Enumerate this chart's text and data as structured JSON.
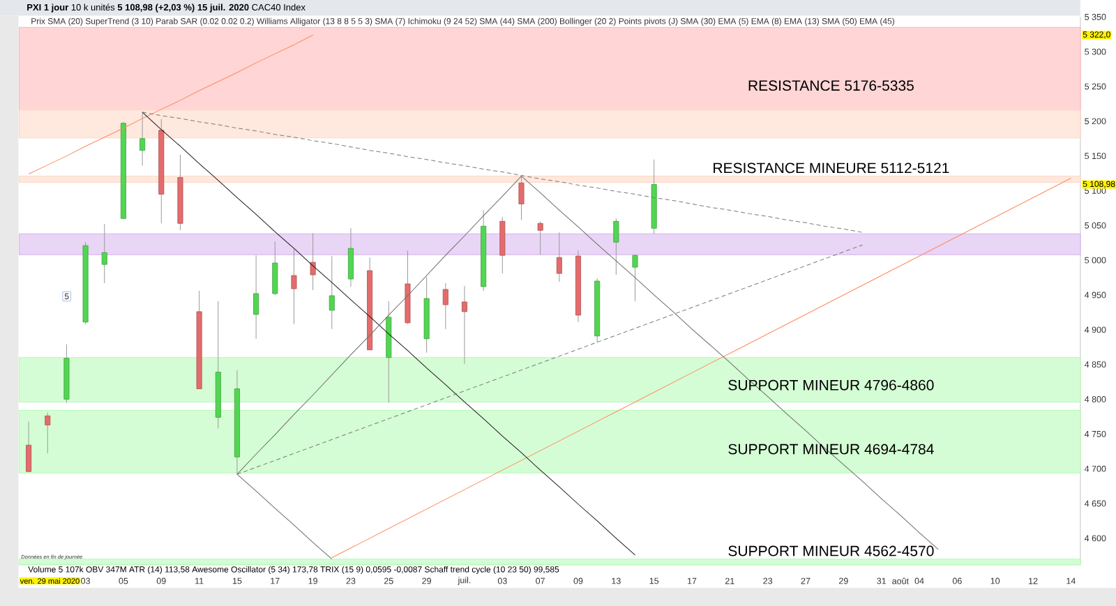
{
  "chart_data": {
    "type": "candlestick",
    "title": "**PXI 1 jour** 10 k unités **5 108,98 (+2,03 %) 15 juil. 2020** CAC40 Index",
    "categories": [
      null,
      null,
      null,
      "03",
      null,
      "05",
      null,
      "09",
      null,
      "11",
      null,
      "15",
      null,
      "17",
      null,
      "19",
      null,
      "23",
      null,
      "25",
      null,
      "29",
      null,
      "juil.",
      null,
      "03",
      null,
      "07",
      null,
      "09",
      null,
      "13",
      null,
      "15",
      null,
      "17",
      null,
      "21",
      null,
      "23",
      null,
      "27",
      null,
      "29",
      null,
      "31",
      "août",
      "04",
      null,
      "06",
      null,
      "10",
      null,
      "12",
      null,
      "14"
    ],
    "ohlc": [
      [
        4734,
        4768,
        4695,
        4696
      ],
      [
        4776,
        4781,
        4722,
        4763
      ],
      [
        4800,
        4879,
        4795,
        4859
      ],
      [
        4911,
        5026,
        4908,
        5021
      ],
      [
        4994,
        5052,
        4967,
        5011
      ],
      [
        5060,
        5199,
        5060,
        5197
      ],
      [
        5158,
        5213,
        5136,
        5175
      ],
      [
        5187,
        5203,
        5053,
        5095
      ],
      [
        5119,
        5152,
        5043,
        5053
      ],
      [
        4926,
        4956,
        4815,
        4815
      ],
      [
        4774,
        4941,
        4758,
        4839
      ],
      [
        4717,
        4842,
        4692,
        4815
      ],
      [
        4922,
        5007,
        4887,
        4952
      ],
      [
        4952,
        5027,
        4950,
        4996
      ],
      [
        4978,
        5016,
        4908,
        4959
      ],
      [
        4997,
        5039,
        4957,
        4979
      ],
      [
        4928,
        5006,
        4901,
        4949
      ],
      [
        4973,
        5046,
        4962,
        5017
      ],
      [
        4985,
        5004,
        4871,
        4871
      ],
      [
        4860,
        4941,
        4795,
        4918
      ],
      [
        4966,
        5014,
        4908,
        4910
      ],
      [
        4887,
        4976,
        4867,
        4945
      ],
      [
        4958,
        4967,
        4901,
        4936
      ],
      [
        4940,
        4963,
        4851,
        4926
      ],
      [
        4962,
        5072,
        4956,
        5049
      ],
      [
        5056,
        5062,
        4981,
        5007
      ],
      [
        5111,
        5121,
        5058,
        5081
      ],
      [
        5053,
        5056,
        5008,
        5043
      ],
      [
        5004,
        5040,
        4969,
        4981
      ],
      [
        5006,
        5014,
        4911,
        4921
      ],
      [
        4891,
        4974,
        4882,
        4970
      ],
      [
        5026,
        5060,
        4979,
        5056
      ],
      [
        4990,
        5008,
        4941,
        5007
      ],
      [
        5046,
        5145,
        5038,
        5109
      ],
      null,
      null,
      null,
      null,
      null,
      null,
      null,
      null,
      null,
      null,
      null,
      null,
      null,
      null,
      null,
      null,
      null,
      null,
      null,
      null,
      null,
      null
    ],
    "colors": [
      "#e46c6c",
      "#e46c6c",
      "#52d652",
      "#52d652",
      "#52d652",
      "#52d652",
      "#52d652",
      "#e46c6c",
      "#e46c6c",
      "#e46c6c",
      "#52d652",
      "#52d652",
      "#52d652",
      "#52d652",
      "#e46c6c",
      "#e46c6c",
      "#52d652",
      "#52d652",
      "#e46c6c",
      "#52d652",
      "#e46c6c",
      "#52d652",
      "#e46c6c",
      "#e46c6c",
      "#52d652",
      "#e46c6c",
      "#e46c6c",
      "#e46c6c",
      "#e46c6c",
      "#e46c6c",
      "#52d652",
      "#52d652",
      "#52d652",
      "#52d652",
      null,
      null,
      null,
      null,
      null,
      null,
      null,
      null,
      null,
      null,
      null,
      null,
      null,
      null,
      null,
      null,
      null,
      null,
      null,
      null,
      null,
      null
    ],
    "series": [
      {
        "type": "line",
        "color": "#ff8a5e",
        "values": [
          5124,
          5137,
          5150,
          5164,
          5177,
          5190,
          5204,
          5217,
          5230,
          5244,
          5257,
          5270,
          5284,
          5297,
          5310,
          5324,
          null,
          null,
          null,
          null,
          null,
          null,
          null,
          null,
          null,
          null,
          null,
          null,
          null,
          null,
          null,
          null,
          null,
          null,
          null,
          null,
          null,
          null,
          null,
          null,
          null,
          null,
          null,
          null,
          null,
          null,
          null,
          null,
          null,
          null,
          null,
          null,
          null,
          null,
          null,
          null
        ]
      },
      {
        "type": "line",
        "color": "#ff8a5e",
        "values": [
          null,
          null,
          null,
          null,
          null,
          null,
          null,
          null,
          null,
          null,
          null,
          null,
          null,
          null,
          null,
          null,
          4572,
          4586,
          4600,
          4614,
          4628,
          4642,
          4656,
          4670,
          4684,
          4698,
          4712,
          4726,
          4740,
          4754,
          4768,
          4782,
          4796,
          4810,
          4824,
          4838,
          4852,
          4866,
          4880,
          4894,
          4908,
          4922,
          4936,
          4950,
          4964,
          4978,
          4992,
          5006,
          5020,
          5034,
          5048,
          5062,
          5076,
          5090,
          5104,
          5118
        ]
      },
      {
        "type": "line",
        "color": "#1e1e1e",
        "values": [
          null,
          null,
          null,
          null,
          null,
          null,
          5213,
          5188,
          5164,
          5139,
          5115,
          5090,
          5066,
          5041,
          5017,
          4992,
          4968,
          4943,
          4919,
          4894,
          4870,
          4845,
          4821,
          4796,
          4772,
          4747,
          4723,
          4698,
          4674,
          4649,
          4625,
          4600,
          4576,
          null,
          null,
          null,
          null,
          null,
          null,
          null,
          null,
          null,
          null,
          null,
          null,
          null,
          null,
          null,
          null,
          null,
          null,
          null,
          null,
          null,
          null,
          null
        ]
      },
      {
        "type": "line",
        "color": "#6e6e6e",
        "values": [
          null,
          null,
          null,
          null,
          null,
          null,
          null,
          null,
          null,
          null,
          null,
          4692,
          4721,
          4749,
          4778,
          4806,
          4835,
          4864,
          4892,
          4921,
          4949,
          4978,
          5007,
          5035,
          5064,
          5092,
          5121,
          null,
          null,
          null,
          null,
          null,
          null,
          null,
          null,
          null,
          null,
          null,
          null,
          null,
          null,
          null,
          null,
          null,
          null,
          null,
          null,
          null,
          null,
          null,
          null,
          null,
          null,
          null,
          null,
          null
        ]
      },
      {
        "type": "line",
        "color": "#6e6e6e",
        "values": [
          null,
          null,
          null,
          null,
          null,
          null,
          null,
          null,
          null,
          null,
          null,
          null,
          null,
          null,
          null,
          null,
          null,
          null,
          null,
          null,
          null,
          null,
          null,
          null,
          null,
          null,
          5121,
          5097,
          5072,
          5048,
          5023,
          4999,
          4975,
          4950,
          4926,
          4901,
          4877,
          4853,
          4828,
          4804,
          4779,
          4755,
          4730,
          4706,
          4682,
          4657,
          4633,
          4608,
          4584,
          null,
          null,
          null,
          null,
          null,
          null,
          null
        ]
      },
      {
        "type": "line",
        "color": "#6e6e6e",
        "values": [
          null,
          null,
          null,
          null,
          null,
          null,
          null,
          null,
          null,
          null,
          null,
          4692,
          4668,
          4643,
          4619,
          4594,
          4570,
          null,
          null,
          null,
          null,
          null,
          null,
          null,
          null,
          null,
          null,
          null,
          null,
          null,
          null,
          null,
          null,
          null,
          null,
          null,
          null,
          null,
          null,
          null,
          null,
          null,
          null,
          null,
          null,
          null,
          null,
          null,
          null,
          null,
          null,
          null,
          null,
          null,
          null,
          null
        ]
      },
      {
        "type": "line",
        "color": "#7a7a7a",
        "line_style": "dashed",
        "values": [
          null,
          null,
          null,
          null,
          null,
          null,
          5213,
          5208,
          5204,
          5199,
          5195,
          5190,
          5186,
          5181,
          5177,
          5172,
          5168,
          5163,
          5158,
          5154,
          5149,
          5145,
          5140,
          5136,
          5131,
          5127,
          5122,
          5117,
          5113,
          5108,
          5104,
          5099,
          5095,
          5090,
          5086,
          5081,
          5076,
          5072,
          5067,
          5063,
          5058,
          5054,
          5049,
          5045,
          5040,
          null,
          null,
          null,
          null,
          null,
          null,
          null,
          null,
          null,
          null,
          null
        ]
      },
      {
        "type": "line",
        "color": "#7a7a7a",
        "line_style": "dashed",
        "values": [
          null,
          null,
          null,
          null,
          null,
          null,
          null,
          null,
          null,
          null,
          null,
          4692,
          4702,
          4712,
          4722,
          4732,
          4742,
          4752,
          4762,
          4772,
          4782,
          4792,
          4802,
          4812,
          4822,
          4832,
          4842,
          4852,
          4862,
          4872,
          4882,
          4892,
          4902,
          4912,
          4922,
          4932,
          4942,
          4952,
          4962,
          4972,
          4982,
          4992,
          5002,
          5012,
          5022,
          null,
          null,
          null,
          null,
          null,
          null,
          null,
          null,
          null,
          null,
          null
        ]
      }
    ],
    "ylim": [
      4562,
      5350
    ],
    "yticks": [
      {
        "value": 4600,
        "label": "4 600"
      },
      {
        "value": 4650,
        "label": "4 650"
      },
      {
        "value": 4700,
        "label": "4 700"
      },
      {
        "value": 4750,
        "label": "4 750"
      },
      {
        "value": 4800,
        "label": "4 800"
      },
      {
        "value": 4850,
        "label": "4 850"
      },
      {
        "value": 4900,
        "label": "4 900"
      },
      {
        "value": 4950,
        "label": "4 950"
      },
      {
        "value": 5000,
        "label": "5 000"
      },
      {
        "value": 5050,
        "label": "5 050"
      },
      {
        "value": 5100,
        "label": "5 100"
      },
      {
        "value": 5150,
        "label": "5 150"
      },
      {
        "value": 5200,
        "label": "5 200"
      },
      {
        "value": 5250,
        "label": "5 250"
      },
      {
        "value": 5300,
        "label": "5 300"
      },
      {
        "value": 5350,
        "label": "5 350"
      }
    ],
    "bands": [
      {
        "axis": "y",
        "from": 5200,
        "to": 5335,
        "label": "RESISTANCE 5176-5335",
        "color": "#ffd5d5"
      },
      {
        "axis": "y",
        "from": 5176,
        "to": 5216,
        "color": "#ffe8de"
      },
      {
        "axis": "y",
        "from": 5112,
        "to": 5121,
        "label": "RESISTANCE MINEURE 5112-5121",
        "color": "#ffe8de"
      },
      {
        "axis": "y",
        "from": 5008,
        "to": 5038,
        "color": "#e9d5f5"
      },
      {
        "axis": "y",
        "from": 4796,
        "to": 4860,
        "label": "SUPPORT MINEUR 4796-4860",
        "color": "#d5fdd5"
      },
      {
        "axis": "y",
        "from": 4694,
        "to": 4784,
        "label": "SUPPORT MINEUR 4694-4784",
        "color": "#d5fdd5"
      },
      {
        "axis": "y",
        "from": 4562,
        "to": 4570,
        "label": "SUPPORT MINEUR 4562-4570",
        "color": "#d5fdd5"
      }
    ],
    "annotations": [
      "Prix SMA (20) SuperTrend (3 10) Parab SAR (0.02 0.02 0.2) Williams Alligator (13 8 8 5 5 3) SMA (7) Ichimoku (9 24 52) SMA (44) SMA (200) Bollinger (20 2) Points pivots (J) SMA (30) EMA (5) EMA (8) EMA (13) SMA (50) EMA (45)",
      "Volume 5 107k OBV 347M ATR (14) 113,58 Awesome Oscillator (5 34) 173,78 TRIX (15 9) 0,0595 -0,0087 Schaff trend cycle (10 23 50) 99,585",
      "Données en fin de journée",
      {
        "text": "5",
        "y": 4948
      },
      "ven. 29 mai 2020",
      "5 322,0",
      "5 108,98"
    ]
  }
}
